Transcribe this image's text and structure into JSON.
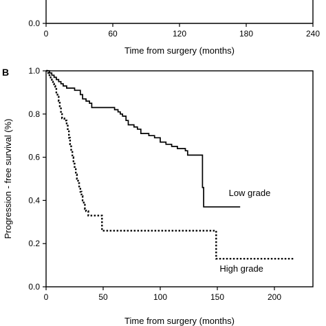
{
  "chart_data": [
    {
      "panel_label": "",
      "type": "line",
      "xlabel": "Time from surgery (months)",
      "ylabel": "",
      "xlim": [
        0,
        240
      ],
      "ylim": [
        0,
        1.0
      ],
      "x_ticks": [
        "0",
        "60",
        "120",
        "180",
        "240"
      ],
      "y_ticks": [
        "0.0"
      ],
      "grid": false,
      "series": []
    },
    {
      "panel_label": "B",
      "type": "line",
      "xlabel": "Time from surgery (months)",
      "ylabel": "Progression - free survival (%)",
      "xlim": [
        0,
        220
      ],
      "ylim": [
        0,
        1.0
      ],
      "x_ticks": [
        "0",
        "50",
        "100",
        "150",
        "200"
      ],
      "y_ticks": [
        "0.0",
        "0.2",
        "0.4",
        "0.6",
        "0.8",
        "1.0"
      ],
      "grid": false,
      "legend": "inline labels",
      "series": [
        {
          "name": "Low grade",
          "line_style": "solid",
          "points": [
            [
              0,
              1.0
            ],
            [
              3,
              0.99
            ],
            [
              5,
              0.98
            ],
            [
              7,
              0.97
            ],
            [
              9,
              0.96
            ],
            [
              11,
              0.95
            ],
            [
              13,
              0.94
            ],
            [
              15,
              0.93
            ],
            [
              18,
              0.92
            ],
            [
              25,
              0.91
            ],
            [
              30,
              0.89
            ],
            [
              32,
              0.87
            ],
            [
              35,
              0.86
            ],
            [
              38,
              0.85
            ],
            [
              40,
              0.83
            ],
            [
              55,
              0.83
            ],
            [
              60,
              0.82
            ],
            [
              63,
              0.81
            ],
            [
              65,
              0.8
            ],
            [
              67,
              0.79
            ],
            [
              70,
              0.77
            ],
            [
              72,
              0.75
            ],
            [
              77,
              0.74
            ],
            [
              80,
              0.73
            ],
            [
              83,
              0.71
            ],
            [
              90,
              0.7
            ],
            [
              95,
              0.69
            ],
            [
              100,
              0.67
            ],
            [
              105,
              0.66
            ],
            [
              110,
              0.65
            ],
            [
              115,
              0.64
            ],
            [
              122,
              0.63
            ],
            [
              124,
              0.61
            ],
            [
              130,
              0.61
            ],
            [
              137,
              0.61
            ],
            [
              137,
              0.46
            ],
            [
              138,
              0.37
            ],
            [
              170,
              0.37
            ]
          ]
        },
        {
          "name": "High grade",
          "line_style": "dotted",
          "points": [
            [
              0,
              1.0
            ],
            [
              1,
              0.99
            ],
            [
              2,
              0.98
            ],
            [
              3,
              0.97
            ],
            [
              4,
              0.96
            ],
            [
              5,
              0.95
            ],
            [
              6,
              0.94
            ],
            [
              7,
              0.93
            ],
            [
              8,
              0.92
            ],
            [
              9,
              0.9
            ],
            [
              10,
              0.88
            ],
            [
              11,
              0.86
            ],
            [
              12,
              0.83
            ],
            [
              13,
              0.8
            ],
            [
              14,
              0.78
            ],
            [
              16,
              0.77
            ],
            [
              18,
              0.75
            ],
            [
              19,
              0.72
            ],
            [
              20,
              0.69
            ],
            [
              21,
              0.66
            ],
            [
              22,
              0.63
            ],
            [
              23,
              0.6
            ],
            [
              24,
              0.57
            ],
            [
              25,
              0.55
            ],
            [
              26,
              0.52
            ],
            [
              27,
              0.5
            ],
            [
              28,
              0.48
            ],
            [
              29,
              0.46
            ],
            [
              30,
              0.44
            ],
            [
              31,
              0.42
            ],
            [
              32,
              0.4
            ],
            [
              33,
              0.38
            ],
            [
              34,
              0.36
            ],
            [
              35,
              0.35
            ],
            [
              37,
              0.33
            ],
            [
              48,
              0.33
            ],
            [
              49,
              0.26
            ],
            [
              148,
              0.26
            ],
            [
              149,
              0.13
            ],
            [
              217,
              0.13
            ]
          ]
        }
      ],
      "annotations": [
        {
          "text": "Low grade",
          "x": 160,
          "y": 0.42
        },
        {
          "text": "High grade",
          "x": 152,
          "y": 0.07
        }
      ]
    }
  ]
}
